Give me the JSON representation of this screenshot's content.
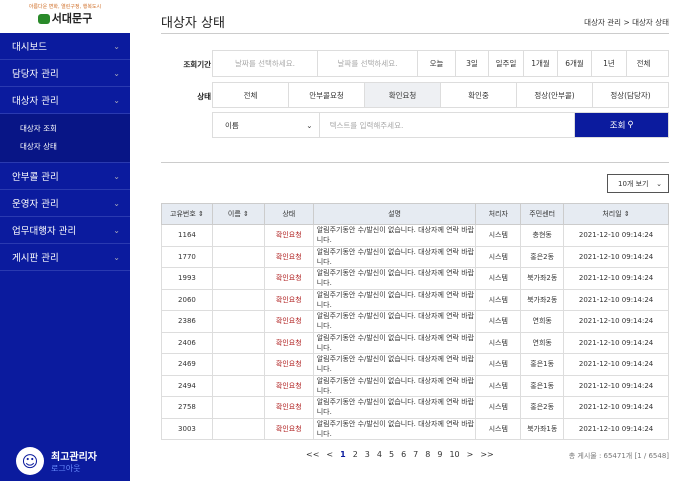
{
  "logo": {
    "slogan": "아름다운 변화, 열린구정, 행복도시",
    "name": "서대문구"
  },
  "sidebar": {
    "items": [
      {
        "label": "대시보드"
      },
      {
        "label": "담당자 관리"
      },
      {
        "label": "대상자 관리",
        "sub": [
          "대상자 조회",
          "대상자 상태"
        ]
      },
      {
        "label": "안부콜 관리"
      },
      {
        "label": "운영자 관리"
      },
      {
        "label": "업무대행자 관리"
      },
      {
        "label": "게시판 관리"
      }
    ],
    "user": "최고관리자",
    "logout": "로그아웃"
  },
  "header": {
    "title": "대상자 상태",
    "breadcrumb": "대상자 관리  >  대상자 상태"
  },
  "filter": {
    "period_label": "조회기간",
    "date_placeholder": "날짜를 선택하세요.",
    "period_buttons": [
      "오늘",
      "3일",
      "일주일",
      "1개월",
      "6개월",
      "1년",
      "전체"
    ],
    "status_label": "상태",
    "status_buttons": [
      "전체",
      "안부콜요청",
      "확인요청",
      "확인중",
      "정상(안부콜)",
      "정상(담당자)"
    ],
    "active_status": "확인요청",
    "field_select": "이름",
    "search_placeholder": "텍스트를 입력해주세요.",
    "search_button": "조회"
  },
  "page_size": "10개 보기",
  "table": {
    "headers": [
      "고유번호 ⇕",
      "이름 ⇕",
      "상태",
      "설명",
      "처리자",
      "주민센터",
      "처리일 ⇕"
    ],
    "rows": [
      [
        "1164",
        "",
        "확인요청",
        "알림주기동안 수/발신이 없습니다. 대상자께 연락 바랍니다.",
        "시스템",
        "충현동",
        "2021-12-10 09:14:24"
      ],
      [
        "1770",
        "",
        "확인요청",
        "알림주기동안 수/발신이 없습니다. 대상자께 연락 바랍니다.",
        "시스템",
        "홍은2동",
        "2021-12-10 09:14:24"
      ],
      [
        "1993",
        "",
        "확인요청",
        "알림주기동안 수/발신이 없습니다. 대상자께 연락 바랍니다.",
        "시스템",
        "북가좌2동",
        "2021-12-10 09:14:24"
      ],
      [
        "2060",
        "",
        "확인요청",
        "알림주기동안 수/발신이 없습니다. 대상자께 연락 바랍니다.",
        "시스템",
        "북가좌2동",
        "2021-12-10 09:14:24"
      ],
      [
        "2386",
        "",
        "확인요청",
        "알림주기동안 수/발신이 없습니다. 대상자께 연락 바랍니다.",
        "시스템",
        "연희동",
        "2021-12-10 09:14:24"
      ],
      [
        "2406",
        "",
        "확인요청",
        "알림주기동안 수/발신이 없습니다. 대상자께 연락 바랍니다.",
        "시스템",
        "연희동",
        "2021-12-10 09:14:24"
      ],
      [
        "2469",
        "",
        "확인요청",
        "알림주기동안 수/발신이 없습니다. 대상자께 연락 바랍니다.",
        "시스템",
        "홍은1동",
        "2021-12-10 09:14:24"
      ],
      [
        "2494",
        "",
        "확인요청",
        "알림주기동안 수/발신이 없습니다. 대상자께 연락 바랍니다.",
        "시스템",
        "홍은1동",
        "2021-12-10 09:14:24"
      ],
      [
        "2758",
        "",
        "확인요청",
        "알림주기동안 수/발신이 없습니다. 대상자께 연락 바랍니다.",
        "시스템",
        "홍은2동",
        "2021-12-10 09:14:24"
      ],
      [
        "3003",
        "",
        "확인요청",
        "알림주기동안 수/발신이 없습니다. 대상자께 연락 바랍니다.",
        "시스템",
        "북가좌1동",
        "2021-12-10 09:14:24"
      ]
    ]
  },
  "pagination": {
    "items": [
      "<<",
      "<",
      "1",
      "2",
      "3",
      "4",
      "5",
      "6",
      "7",
      "8",
      "9",
      "10",
      ">",
      ">>"
    ],
    "current": "1",
    "total": "총 게시물 : 65471개 [1 / 6548]"
  },
  "colors": {
    "sidebar": "#0b1b9e",
    "status_text": "#b02020"
  }
}
